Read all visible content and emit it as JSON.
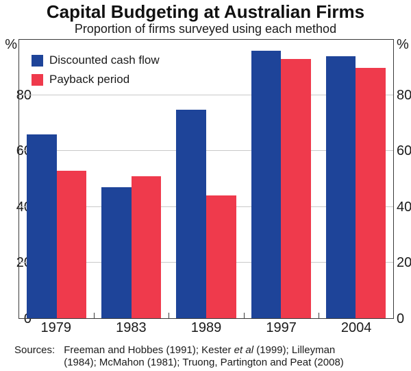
{
  "title": "Capital Budgeting at Australian Firms",
  "subtitle": "Proportion of firms surveyed using each method",
  "chart_data": {
    "type": "bar",
    "categories": [
      "1979",
      "1983",
      "1989",
      "1997",
      "2004"
    ],
    "series": [
      {
        "name": "Discounted cash flow",
        "color": "#1e4499",
        "values": [
          66,
          47,
          75,
          96,
          94
        ]
      },
      {
        "name": "Payback period",
        "color": "#ef3a4c",
        "values": [
          53,
          51,
          44,
          93,
          90
        ]
      }
    ],
    "title": "Capital Budgeting at Australian Firms",
    "subtitle": "Proportion of firms surveyed using each method",
    "xlabel": "",
    "ylabel": "%",
    "ylim": [
      0,
      100
    ],
    "yticks": [
      0,
      20,
      40,
      60,
      80
    ],
    "grid": true,
    "legend_position": "top-left"
  },
  "axes": {
    "left_unit": "%",
    "right_unit": "%"
  },
  "sources": {
    "label": "Sources:",
    "line1_pre": "Freeman and Hobbes (1991); Kester ",
    "line1_italic": "et al",
    "line1_post": " (1999); Lilleyman",
    "line2": "(1984); McMahon (1981); Truong, Partington and Peat (2008)"
  },
  "colors": {
    "bar_blue": "#1e4499",
    "bar_red": "#ef3a4c",
    "gridline": "#c9c9c9",
    "axis": "#3a3a3a",
    "text": "#1a1a1a"
  }
}
